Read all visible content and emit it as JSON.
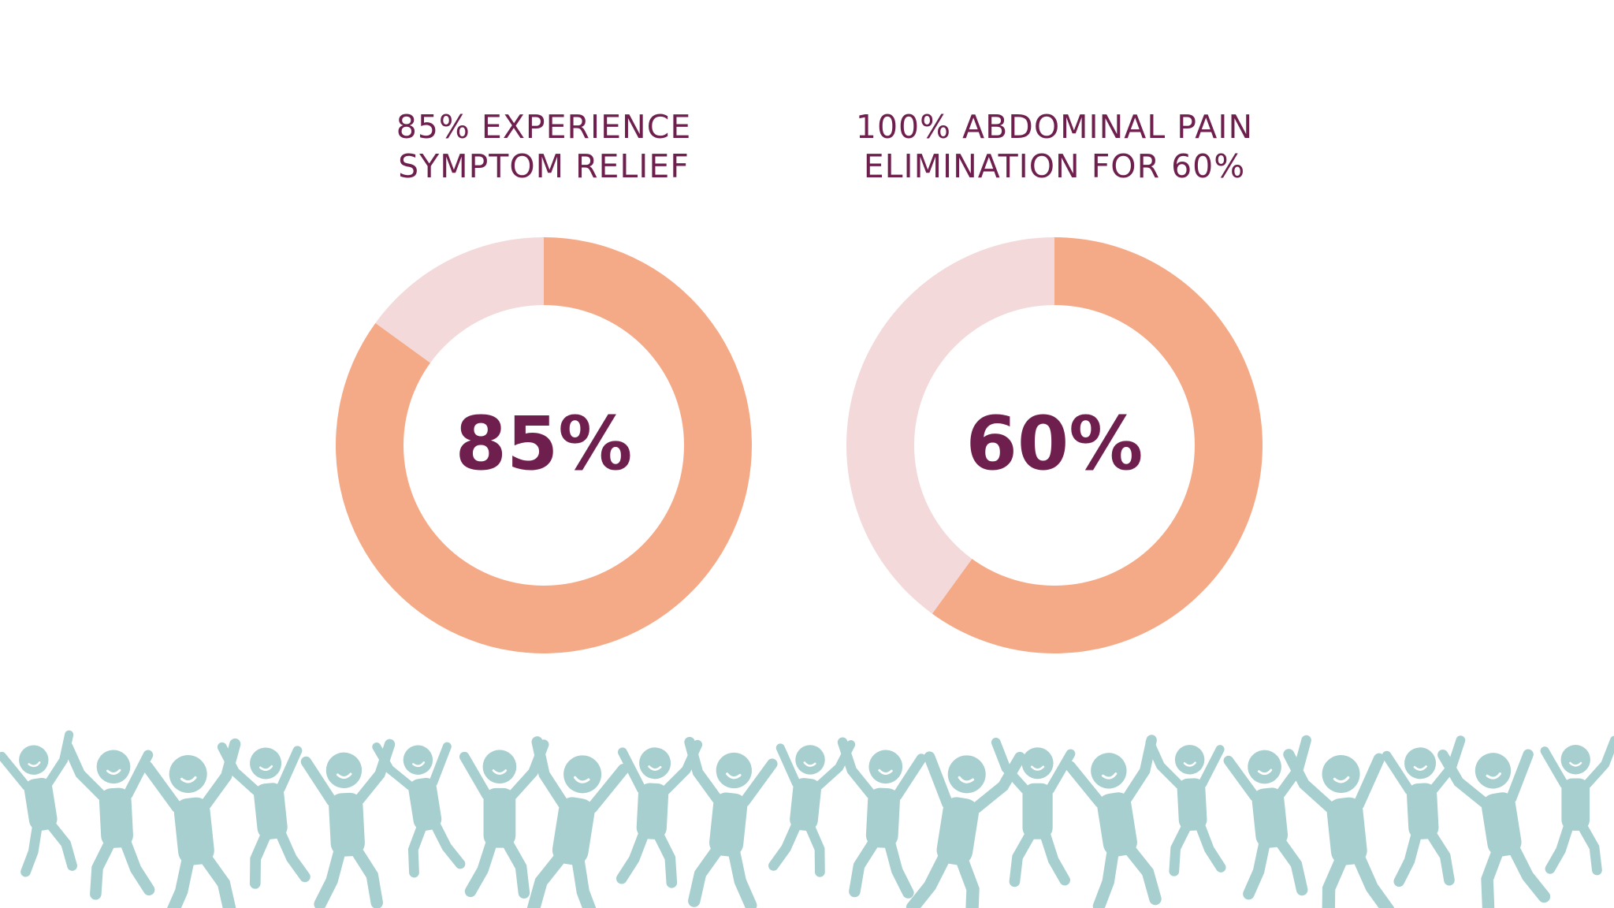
{
  "colors": {
    "accent": "#f5aa87",
    "remainder": "#f3d9da",
    "text": "#6e1f4d",
    "figures": "#a8cfcf"
  },
  "chart_data": [
    {
      "type": "pie",
      "title_lines": [
        "85% EXPERIENCE",
        "SYMPTOM RELIEF"
      ],
      "value": 85,
      "center_label": "85%",
      "segments": [
        {
          "value": 85,
          "color": "#f5aa87"
        },
        {
          "value": 15,
          "color": "#f3d9da"
        }
      ]
    },
    {
      "type": "pie",
      "title_lines": [
        "100% ABDOMINAL PAIN",
        "ELIMINATION FOR 60%"
      ],
      "value": 60,
      "center_label": "60%",
      "segments": [
        {
          "value": 60,
          "color": "#f5aa87"
        },
        {
          "value": 40,
          "color": "#f3d9da"
        }
      ]
    }
  ],
  "decoration": {
    "figure_icon": "dancing-person-icon",
    "figure_count": 21
  }
}
